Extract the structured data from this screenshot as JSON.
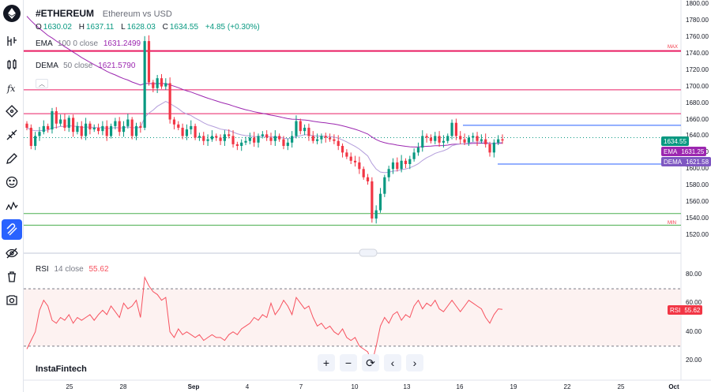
{
  "symbol": {
    "ticker": "#ETHEREUM",
    "description": "Ethereum vs USD",
    "ohlc": {
      "o_label": "O",
      "o_value": "1630.02",
      "h_label": "H",
      "h_value": "1637.11",
      "l_label": "L",
      "l_value": "1628.03",
      "c_label": "C",
      "c_value": "1634.55",
      "change": "+4.85 (+0.30%)"
    }
  },
  "indicators": {
    "ema": {
      "name": "EMA",
      "params": "100  0  close",
      "value": "1631.2499",
      "tag_label": "EMA",
      "tag_value": "1631.25"
    },
    "dema": {
      "name": "DEMA",
      "params": "50  close",
      "value": "1621.5790",
      "tag_label": "DEMA",
      "tag_value": "1621.58"
    },
    "rsi": {
      "name": "RSI",
      "params": "14  close",
      "value": "55.62",
      "tag_label": "RSI",
      "tag_value": "55.62"
    }
  },
  "price_axis": {
    "last_price": "1634.55",
    "ticks": [
      "1800.00",
      "1780.00",
      "1760.00",
      "1740.00",
      "1720.00",
      "1700.00",
      "1680.00",
      "1660.00",
      "1640.00",
      "1620.00",
      "1600.00",
      "1580.00",
      "1560.00",
      "1540.00",
      "1520.00"
    ],
    "max_label": "MAX",
    "min_label": "MIN",
    "levels": [
      1743,
      1696,
      1667,
      1653,
      1638,
      1606,
      1546,
      1532
    ]
  },
  "rsi_axis": {
    "ticks": [
      "80.00",
      "60.00",
      "40.00",
      "20.00"
    ],
    "upper_band": 70,
    "lower_band": 30
  },
  "time_axis": {
    "labels": [
      "25",
      "28",
      "Sep",
      "4",
      "7",
      "10",
      "13",
      "16",
      "19",
      "22",
      "25",
      "Oct"
    ]
  },
  "footer": {
    "brand": "InstaFintech"
  },
  "toolbar": {
    "icons": [
      "logo-icon",
      "candle-type-icon",
      "bars-icon",
      "fx-indicators-icon",
      "crosshair-icon",
      "trend-line-icon",
      "brush-icon",
      "emoji-icon",
      "pattern-icon",
      "magnet-icon",
      "hide-drawings-icon",
      "delete-icon",
      "screenshot-icon"
    ],
    "active": "magnet-icon"
  },
  "nav_buttons": [
    "+",
    "−",
    "⟳",
    "‹",
    "›"
  ],
  "colors": {
    "up": "#089981",
    "down": "#f23645",
    "ema": "#9c27b0",
    "dema": "#b39ddb",
    "rsi": "#f7525f",
    "max_line": "#e91e63",
    "accent": "#2962ff"
  },
  "chart_data": {
    "type": "candlestick",
    "ema_last": 1631.25,
    "dema_last": 1621.58,
    "rsi_last": 55.62,
    "candles_close": [
      1650,
      1628,
      1640,
      1645,
      1652,
      1648,
      1670,
      1655,
      1660,
      1650,
      1662,
      1645,
      1652,
      1640,
      1655,
      1648,
      1650,
      1646,
      1652,
      1640,
      1652,
      1658,
      1645,
      1652,
      1660,
      1640,
      1652,
      1650,
      1755,
      1705,
      1698,
      1710,
      1700,
      1704,
      1660,
      1654,
      1650,
      1640,
      1648,
      1652,
      1638,
      1640,
      1634,
      1636,
      1640,
      1638,
      1634,
      1642,
      1640,
      1630,
      1628,
      1632,
      1634,
      1638,
      1632,
      1640,
      1642,
      1638,
      1634,
      1640,
      1636,
      1628,
      1632,
      1640,
      1658,
      1646,
      1650,
      1640,
      1634,
      1636,
      1640,
      1638,
      1636,
      1634,
      1628,
      1620,
      1615,
      1610,
      1608,
      1600,
      1590,
      1585,
      1540,
      1550,
      1570,
      1590,
      1600,
      1608,
      1600,
      1610,
      1606,
      1612,
      1620,
      1626,
      1640,
      1638,
      1634,
      1640,
      1632,
      1634,
      1640,
      1656,
      1640,
      1636,
      1632,
      1638,
      1640,
      1634,
      1636,
      1630,
      1620,
      1632,
      1636,
      1634.55
    ],
    "rsi_values": [
      28,
      34,
      40,
      55,
      62,
      58,
      48,
      46,
      50,
      48,
      52,
      46,
      50,
      48,
      50,
      52,
      48,
      52,
      55,
      52,
      58,
      54,
      50,
      60,
      56,
      58,
      62,
      50,
      78,
      72,
      68,
      66,
      62,
      64,
      40,
      36,
      42,
      38,
      40,
      38,
      36,
      38,
      34,
      36,
      38,
      36,
      36,
      34,
      38,
      40,
      38,
      42,
      44,
      46,
      50,
      48,
      52,
      50,
      60,
      52,
      56,
      62,
      58,
      52,
      64,
      60,
      56,
      58,
      50,
      44,
      46,
      42,
      44,
      40,
      38,
      42,
      36,
      34,
      36,
      30,
      28,
      26,
      18,
      30,
      44,
      50,
      46,
      52,
      54,
      48,
      52,
      50,
      58,
      62,
      56,
      60,
      58,
      62,
      56,
      54,
      58,
      62,
      58,
      54,
      58,
      62,
      60,
      58,
      56,
      50,
      46,
      52,
      56,
      55.62
    ]
  }
}
